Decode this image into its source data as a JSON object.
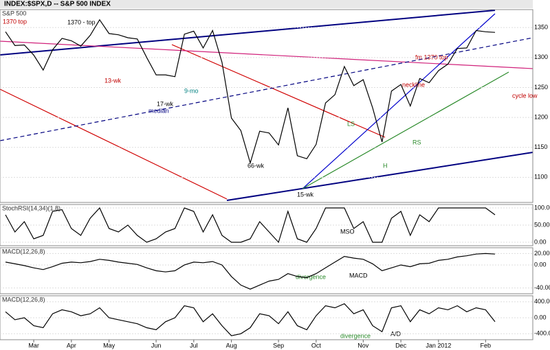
{
  "chart_data": [
    {
      "type": "line",
      "title": "INDEX:$SPX,D -- S&P 500 INDEX",
      "categories": [
        null,
        null,
        null,
        "Mar",
        null,
        null,
        null,
        "Apr",
        null,
        null,
        null,
        "May",
        null,
        null,
        null,
        null,
        "Jun",
        null,
        null,
        null,
        "Jul",
        null,
        null,
        null,
        "Aug",
        null,
        null,
        null,
        null,
        "Sep",
        null,
        null,
        null,
        "Oct",
        null,
        null,
        null,
        null,
        "Nov",
        null,
        null,
        null,
        "Dec",
        null,
        null,
        null,
        "Jan 2012",
        null,
        null,
        null,
        null,
        "Feb",
        null
      ],
      "series": [
        {
          "name": "S&P 500",
          "color": "#000000",
          "values": [
            1343,
            1320,
            1321,
            1304,
            1279,
            1313,
            1332,
            1328,
            1319,
            1337,
            1363,
            1340,
            1338,
            1333,
            1331,
            1300,
            1271,
            1271,
            1268,
            1339,
            1344,
            1316,
            1345,
            1292,
            1199,
            1178,
            1124,
            1177,
            1174,
            1154,
            1216,
            1136,
            1131,
            1155,
            1224,
            1238,
            1285,
            1253,
            1263,
            1216,
            1159,
            1244,
            1255,
            1219,
            1265,
            1258,
            1278,
            1289,
            1315,
            1316,
            1345,
            1343,
            1342
          ]
        }
      ],
      "ylim": [
        1058,
        1380
      ],
      "yticks": [
        1100,
        1150,
        1200,
        1250,
        1300,
        1350
      ],
      "grid": true,
      "annotations": [
        "1370 top",
        "1370 - top",
        "13-wk",
        "median",
        "9-mo",
        "17-wk",
        "LS",
        "H",
        "RS",
        "neckline",
        "fm 1370 top",
        "cycle low",
        "66-wk",
        "15-wk"
      ]
    },
    {
      "type": "line",
      "series": [
        {
          "name": "StochRSI(14,34)(1,8)",
          "color": "#000000",
          "values": [
            80,
            30,
            60,
            10,
            20,
            90,
            95,
            40,
            20,
            70,
            100,
            40,
            30,
            50,
            20,
            0,
            10,
            30,
            40,
            100,
            90,
            30,
            80,
            20,
            0,
            0,
            10,
            60,
            30,
            0,
            90,
            10,
            0,
            40,
            100,
            100,
            100,
            40,
            60,
            0,
            0,
            70,
            90,
            20,
            80,
            60,
            100,
            100,
            100,
            100,
            100,
            100,
            80
          ]
        }
      ],
      "ylim": [
        -10,
        110
      ],
      "yticks": [
        {
          "value": 100,
          "label": "100.00"
        },
        {
          "value": 50,
          "label": "50.00"
        },
        {
          "value": 0,
          "label": "0.00"
        }
      ],
      "grid": true,
      "annotations": [
        "MSO"
      ]
    },
    {
      "type": "line",
      "series": [
        {
          "name": "MACD(12,26,8)",
          "color": "#000000",
          "values": [
            5,
            2,
            -1,
            -5,
            -8,
            -3,
            3,
            5,
            4,
            6,
            10,
            8,
            5,
            3,
            1,
            -5,
            -10,
            -12,
            -10,
            0,
            5,
            4,
            6,
            0,
            -20,
            -35,
            -42,
            -35,
            -28,
            -25,
            -15,
            -20,
            -22,
            -15,
            -5,
            5,
            15,
            12,
            10,
            2,
            -10,
            -5,
            0,
            -3,
            2,
            3,
            8,
            10,
            14,
            16,
            19,
            20,
            19
          ]
        }
      ],
      "ylim": [
        -50,
        30
      ],
      "yticks": [
        {
          "value": 20,
          "label": "20.00"
        },
        {
          "value": 0,
          "label": "0.00"
        },
        {
          "value": -40,
          "label": "-40.00"
        }
      ],
      "grid": true,
      "annotations": [
        "MACD",
        "divergence"
      ]
    },
    {
      "type": "line",
      "series": [
        {
          "name": "MACD(12,26,8)",
          "color": "#000000",
          "values": [
            150,
            -50,
            0,
            -200,
            -250,
            100,
            200,
            150,
            50,
            100,
            250,
            0,
            -50,
            -100,
            -150,
            -250,
            -300,
            -100,
            0,
            300,
            250,
            -100,
            100,
            -200,
            -450,
            -400,
            -250,
            100,
            50,
            -150,
            150,
            -200,
            -300,
            50,
            300,
            250,
            350,
            100,
            200,
            -200,
            -350,
            250,
            300,
            -100,
            200,
            100,
            250,
            200,
            300,
            150,
            250,
            200,
            -100
          ]
        }
      ],
      "ylim": [
        -550,
        550
      ],
      "yticks": [
        {
          "value": 400,
          "label": "400.00"
        },
        {
          "value": 0,
          "label": "0.00"
        },
        {
          "value": -400,
          "label": "-400.00"
        }
      ],
      "grid": true,
      "annotations": [
        "A/D",
        "divergence"
      ]
    }
  ]
}
